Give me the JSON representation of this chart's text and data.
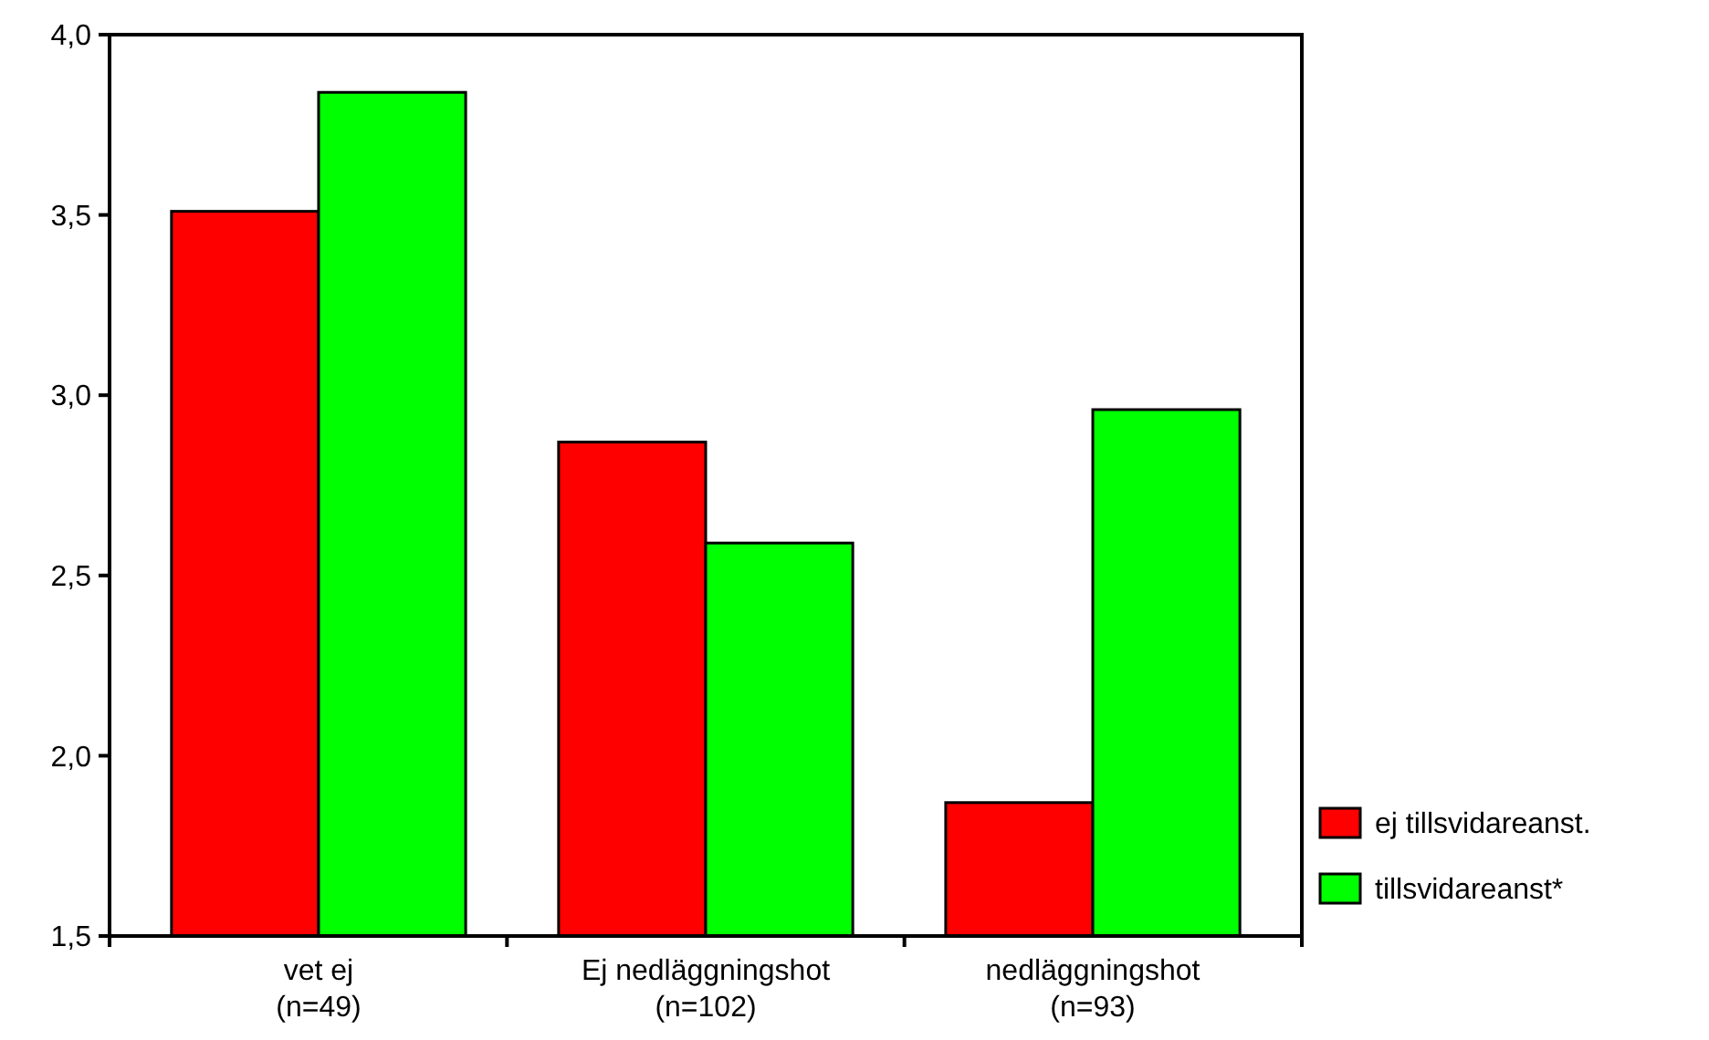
{
  "chart_data": {
    "type": "bar",
    "categories": [
      "vet ej\n(n=49)",
      "Ej nedläggningshot\n(n=102)",
      "nedläggningshot\n(n=93)"
    ],
    "series": [
      {
        "name": "ej tillsvidareanst.",
        "color": "#ff0000",
        "values": [
          3.51,
          2.87,
          1.87
        ]
      },
      {
        "name": "tillsvidareanst*",
        "color": "#00ff00",
        "values": [
          3.84,
          2.59,
          2.96
        ]
      }
    ],
    "ylim": [
      1.5,
      4.0
    ],
    "yticks": [
      {
        "value": 1.5,
        "label": "1,5"
      },
      {
        "value": 2.0,
        "label": "2,0"
      },
      {
        "value": 2.5,
        "label": "2,5"
      },
      {
        "value": 3.0,
        "label": "3,0"
      },
      {
        "value": 3.5,
        "label": "3,5"
      },
      {
        "value": 4.0,
        "label": "4,0"
      }
    ],
    "grid": false,
    "legend": "right"
  }
}
